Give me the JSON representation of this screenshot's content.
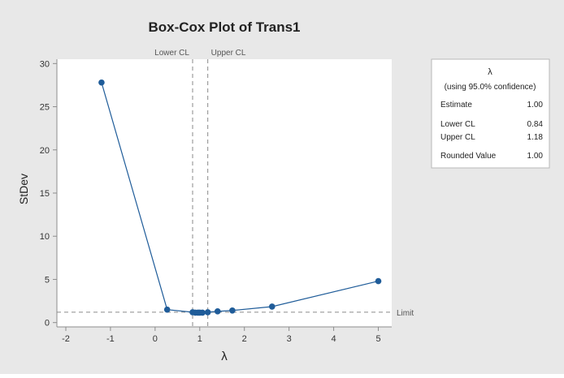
{
  "chart_data": {
    "type": "line",
    "title": "Box-Cox Plot of Trans1",
    "xlabel": "λ",
    "ylabel": "StDev",
    "xlim": [
      -2.2,
      5.3
    ],
    "ylim": [
      -0.5,
      30.5
    ],
    "xticks": [
      -2,
      -1,
      0,
      1,
      2,
      3,
      4,
      5
    ],
    "yticks": [
      0,
      5,
      10,
      15,
      20,
      25,
      30
    ],
    "grid": false,
    "series": [
      {
        "x": [
          -1.2,
          0.27,
          0.84,
          0.9,
          0.96,
          1.0,
          1.06,
          1.18,
          1.4,
          1.73,
          2.62,
          5.0
        ],
        "y": [
          27.8,
          1.5,
          1.2,
          1.15,
          1.15,
          1.15,
          1.15,
          1.2,
          1.3,
          1.4,
          1.85,
          4.8
        ],
        "color": "#1f5c99"
      }
    ],
    "ref_lines": {
      "vertical": [
        {
          "label": "Lower CL",
          "x": 0.84
        },
        {
          "label": "Upper CL",
          "x": 1.18
        }
      ],
      "horizontal": [
        {
          "label": "Limit",
          "y": 1.2
        }
      ]
    },
    "legend_box": {
      "placement": "top-right",
      "header": "λ",
      "subheader": "(using 95.0% confidence)",
      "rows": [
        {
          "label": "Estimate",
          "value": "1.00"
        },
        {
          "label": "Lower CL",
          "value": "0.84"
        },
        {
          "label": "Upper CL",
          "value": "1.18"
        },
        {
          "label": "Rounded Value",
          "value": "1.00"
        }
      ]
    },
    "colors": {
      "background": "#e8e8e8",
      "plot_area": "#ffffff",
      "line": "#1f5c99",
      "ref_line": "#8a8a8a"
    }
  }
}
